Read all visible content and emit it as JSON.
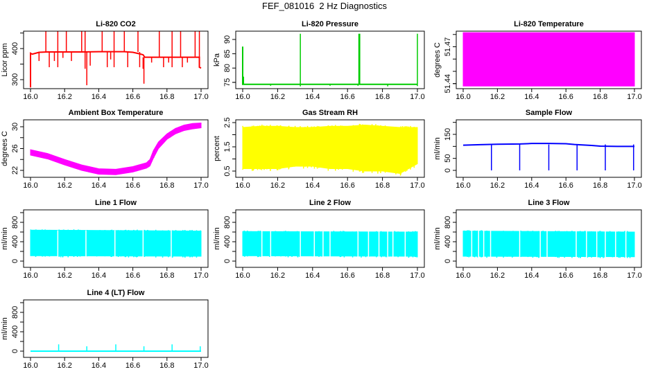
{
  "main_title": "FEF_081016  2 Hz Diagnostics",
  "chart_data": [
    {
      "type": "line",
      "title": "Li-820 CO2",
      "ylabel": "Licor ppm",
      "color": "#ff0000",
      "xlim": [
        16.0,
        17.0
      ],
      "ylim": [
        271,
        456
      ],
      "xticks": [
        16.0,
        16.2,
        16.4,
        16.6,
        16.8,
        17.0
      ],
      "xticklabels": [
        "16.0",
        "16.2",
        "16.4",
        "16.6",
        "16.8",
        "17.0"
      ],
      "yticks": [
        300,
        350,
        400,
        450
      ],
      "yticklabels": [
        "300",
        "",
        "400",
        ""
      ],
      "series": [
        {
          "kind": "line",
          "points": [
            [
              16.0,
              275
            ],
            [
              16.0,
              385
            ],
            [
              16.01,
              382
            ],
            [
              16.03,
              385
            ],
            [
              16.05,
              388
            ],
            [
              16.1,
              389
            ],
            [
              16.2,
              389
            ],
            [
              16.3,
              389
            ],
            [
              16.4,
              390
            ],
            [
              16.5,
              390
            ],
            [
              16.55,
              390
            ],
            [
              16.6,
              388
            ],
            [
              16.64,
              383
            ],
            [
              16.66,
              380
            ],
            [
              16.67,
              372
            ],
            [
              16.8,
              372
            ],
            [
              16.9,
              372
            ],
            [
              16.99,
              372
            ],
            [
              16.99,
              340
            ],
            [
              17.0,
              337
            ]
          ]
        },
        {
          "kind": "spikes",
          "base": 389,
          "x": [
            16.09,
            16.16,
            16.21,
            16.3,
            16.32,
            16.42,
            16.49,
            16.55,
            16.63
          ],
          "y": [
            455,
            455,
            455,
            455,
            455,
            455,
            455,
            455,
            455
          ]
        },
        {
          "kind": "spikes",
          "base": 372,
          "x": [
            16.755,
            16.83,
            16.88,
            16.965,
            16.99
          ],
          "y": [
            455,
            455,
            455,
            455,
            455
          ]
        },
        {
          "kind": "spikes",
          "base": 389,
          "x": [
            16.05,
            16.11,
            16.14,
            16.16,
            16.19,
            16.24,
            16.32,
            16.33,
            16.35,
            16.45,
            16.47,
            16.49,
            16.57,
            16.64
          ],
          "y": [
            360,
            340,
            360,
            340,
            370,
            360,
            335,
            282,
            345,
            340,
            365,
            340,
            340,
            340
          ]
        },
        {
          "kind": "spikes",
          "base": 372,
          "x": [
            16.66,
            16.665,
            16.71,
            16.78,
            16.81,
            16.83,
            16.89,
            16.92
          ],
          "y": [
            335,
            287,
            355,
            340,
            355,
            340,
            340,
            355
          ]
        }
      ]
    },
    {
      "type": "line",
      "title": "Li-820 Pressure",
      "ylabel": "kPa",
      "color": "#00cc00",
      "xlim": [
        16.0,
        17.0
      ],
      "ylim": [
        72.8,
        92.9
      ],
      "xticks": [
        16.0,
        16.2,
        16.4,
        16.6,
        16.8,
        17.0
      ],
      "xticklabels": [
        "16.0",
        "16.2",
        "16.4",
        "16.6",
        "16.8",
        "17.0"
      ],
      "yticks": [
        75,
        80,
        85,
        90
      ],
      "yticklabels": [
        "75",
        "80",
        "85",
        "90"
      ],
      "series": [
        {
          "kind": "line",
          "points": [
            [
              16.0,
              87.5
            ],
            [
              16.0,
              74.3
            ],
            [
              17.0,
              74.3
            ]
          ]
        },
        {
          "kind": "spikes",
          "base": 74.3,
          "x": [
            16.33,
            16.665,
            16.67,
            17.0
          ],
          "y": [
            92,
            92,
            92,
            92
          ]
        },
        {
          "kind": "spikes",
          "base": 74.3,
          "x": [
            16.005,
            16.16,
            16.33,
            16.5,
            16.66,
            16.83,
            17.0
          ],
          "y": [
            77,
            73.8,
            73.6,
            73.8,
            73.8,
            73.6,
            73.7
          ]
        }
      ]
    },
    {
      "type": "area",
      "title": "Li-820 Temperature",
      "ylabel": "degrees C",
      "color": "#ff00ff",
      "xlim": [
        16.0,
        17.0
      ],
      "ylim": [
        51.4359,
        51.4827
      ],
      "xticks": [
        16.0,
        16.2,
        16.4,
        16.6,
        16.8,
        17.0
      ],
      "xticklabels": [
        "16.0",
        "16.2",
        "16.4",
        "16.6",
        "16.8",
        "17.0"
      ],
      "yticks": [
        51.44,
        51.45,
        51.46,
        51.47,
        51.48
      ],
      "yticklabels": [
        "51.44",
        "",
        "",
        "51.47",
        ""
      ],
      "series": [
        {
          "kind": "band",
          "x": [
            16.0,
            17.0
          ],
          "low": [
            51.438,
            51.438
          ],
          "high": [
            51.4815,
            51.4815
          ]
        }
      ]
    },
    {
      "type": "area",
      "title": "Ambient Box Temperature",
      "ylabel": "degrees C",
      "color": "#ff00ff",
      "xlim": [
        16.0,
        17.0
      ],
      "ylim": [
        20.73,
        31.27
      ],
      "xticks": [
        16.0,
        16.2,
        16.4,
        16.6,
        16.8,
        17.0
      ],
      "xticklabels": [
        "16.0",
        "16.2",
        "16.4",
        "16.6",
        "16.8",
        "17.0"
      ],
      "yticks": [
        22,
        24,
        26,
        28,
        30
      ],
      "yticklabels": [
        "22",
        "",
        "26",
        "",
        "30"
      ],
      "series": [
        {
          "kind": "band",
          "x": [
            16.0,
            16.1,
            16.2,
            16.3,
            16.4,
            16.5,
            16.6,
            16.68,
            16.7,
            16.72,
            16.75,
            16.8,
            16.85,
            16.9,
            16.95,
            17.0
          ],
          "low": [
            24.8,
            24.1,
            23.0,
            22.0,
            21.3,
            21.2,
            21.7,
            22.4,
            22.8,
            24.2,
            26.0,
            27.7,
            28.7,
            29.3,
            29.6,
            29.8
          ],
          "high": [
            25.8,
            25.1,
            24.0,
            23.0,
            22.3,
            22.2,
            22.7,
            23.4,
            24.0,
            25.6,
            27.2,
            28.7,
            29.7,
            30.3,
            30.6,
            30.7
          ]
        }
      ]
    },
    {
      "type": "area",
      "title": "Gas Stream RH",
      "ylabel": "percent",
      "color": "#ffff00",
      "xlim": [
        16.0,
        17.0
      ],
      "ylim": [
        0.243,
        2.614
      ],
      "xticks": [
        16.0,
        16.2,
        16.4,
        16.6,
        16.8,
        17.0
      ],
      "xticklabels": [
        "16.0",
        "16.2",
        "16.4",
        "16.6",
        "16.8",
        "17.0"
      ],
      "yticks": [
        0.5,
        1.0,
        1.5,
        2.0,
        2.5
      ],
      "yticklabels": [
        "0.5",
        "",
        "1.5",
        "",
        "2.5"
      ],
      "series": [
        {
          "kind": "band",
          "x": [
            16.0,
            16.1,
            16.2,
            16.3,
            16.4,
            16.5,
            16.6,
            16.7,
            16.8,
            16.9,
            17.0
          ],
          "low": [
            0.6,
            0.6,
            0.6,
            0.7,
            0.7,
            0.6,
            0.6,
            0.5,
            0.5,
            0.4,
            0.8
          ],
          "high": [
            2.3,
            2.35,
            2.35,
            2.3,
            2.3,
            2.35,
            2.35,
            2.4,
            2.35,
            2.3,
            2.3
          ]
        }
      ]
    },
    {
      "type": "line",
      "title": "Sample Flow",
      "ylabel": "ml/min",
      "color": "#0000ff",
      "xlim": [
        16.0,
        17.0
      ],
      "ylim": [
        -28.8,
        210.6
      ],
      "xticks": [
        16.0,
        16.2,
        16.4,
        16.6,
        16.8,
        17.0
      ],
      "xticklabels": [
        "16.0",
        "16.2",
        "16.4",
        "16.6",
        "16.8",
        "17.0"
      ],
      "yticks": [
        0,
        50,
        100,
        150,
        200
      ],
      "yticklabels": [
        "0",
        "50",
        "",
        "150",
        ""
      ],
      "series": [
        {
          "kind": "line",
          "points": [
            [
              16.0,
              105
            ],
            [
              16.1,
              107
            ],
            [
              16.2,
              109
            ],
            [
              16.33,
              110
            ],
            [
              16.4,
              112
            ],
            [
              16.5,
              112
            ],
            [
              16.6,
              111
            ],
            [
              16.65,
              108
            ],
            [
              16.75,
              104
            ],
            [
              16.8,
              101
            ],
            [
              16.9,
              100
            ],
            [
              17.0,
              100
            ]
          ]
        },
        {
          "kind": "spikes",
          "base": 108,
          "x": [
            16.165,
            16.33,
            16.5,
            16.665,
            16.83,
            16.995
          ],
          "y": [
            0,
            0,
            0,
            0,
            0,
            0
          ]
        }
      ]
    },
    {
      "type": "area",
      "title": "Line 1 Flow",
      "ylabel": "ml/min",
      "color": "#00ffff",
      "xlim": [
        16.0,
        17.0
      ],
      "ylim": [
        -128.6,
        1057
      ],
      "xticks": [
        16.0,
        16.2,
        16.4,
        16.6,
        16.8,
        17.0
      ],
      "xticklabels": [
        "16.0",
        "16.2",
        "16.4",
        "16.6",
        "16.8",
        "17.0"
      ],
      "yticks": [
        0,
        200,
        400,
        600,
        800,
        1000
      ],
      "yticklabels": [
        "0",
        "",
        "400",
        "",
        "800",
        ""
      ],
      "series": [
        {
          "kind": "band",
          "x": [
            16.0,
            17.0
          ],
          "low": [
            110,
            100
          ],
          "high": [
            640,
            620
          ]
        },
        {
          "kind": "gaps",
          "x": [
            16.16,
            16.325,
            16.495,
            16.66,
            16.825
          ]
        }
      ]
    },
    {
      "type": "area",
      "title": "Line 2 Flow",
      "ylabel": "ml/min",
      "color": "#00ffff",
      "xlim": [
        16.0,
        17.0
      ],
      "ylim": [
        -128.6,
        1057
      ],
      "xticks": [
        16.0,
        16.2,
        16.4,
        16.6,
        16.8,
        17.0
      ],
      "xticklabels": [
        "16.0",
        "16.2",
        "16.4",
        "16.6",
        "16.8",
        "17.0"
      ],
      "yticks": [
        0,
        200,
        400,
        600,
        800,
        1000
      ],
      "yticklabels": [
        "0",
        "",
        "400",
        "",
        "800",
        ""
      ],
      "series": [
        {
          "kind": "band",
          "x": [
            16.0,
            17.0
          ],
          "low": [
            110,
            100
          ],
          "high": [
            610,
            600
          ]
        },
        {
          "kind": "gaps",
          "x": [
            16.11,
            16.16,
            16.33,
            16.41,
            16.46,
            16.5,
            16.66,
            16.72,
            16.78,
            16.83,
            16.86,
            16.93
          ]
        }
      ]
    },
    {
      "type": "area",
      "title": "Line 3 Flow",
      "ylabel": "ml/min",
      "color": "#00ffff",
      "xlim": [
        16.0,
        17.0
      ],
      "ylim": [
        -128.6,
        1057
      ],
      "xticks": [
        16.0,
        16.2,
        16.4,
        16.6,
        16.8,
        17.0
      ],
      "xticklabels": [
        "16.0",
        "16.2",
        "16.4",
        "16.6",
        "16.8",
        "17.0"
      ],
      "yticks": [
        0,
        200,
        400,
        600,
        800,
        1000
      ],
      "yticklabels": [
        "0",
        "",
        "400",
        "",
        "800",
        ""
      ],
      "series": [
        {
          "kind": "band",
          "x": [
            16.0,
            17.0
          ],
          "low": [
            100,
            90
          ],
          "high": [
            620,
            600
          ]
        },
        {
          "kind": "gaps",
          "x": [
            16.05,
            16.09,
            16.12,
            16.16,
            16.33,
            16.45,
            16.49,
            16.66,
            16.72,
            16.78,
            16.83,
            16.89,
            16.95
          ]
        }
      ]
    },
    {
      "type": "line",
      "title": "Line 4 (LT) Flow",
      "ylabel": "ml/min",
      "color": "#00ffff",
      "xlim": [
        16.0,
        17.0
      ],
      "ylim": [
        -128.6,
        1057
      ],
      "xticks": [
        16.0,
        16.2,
        16.4,
        16.6,
        16.8,
        17.0
      ],
      "xticklabels": [
        "16.0",
        "16.2",
        "16.4",
        "16.6",
        "16.8",
        "17.0"
      ],
      "yticks": [
        0,
        200,
        400,
        600,
        800,
        1000
      ],
      "yticklabels": [
        "0",
        "",
        "400",
        "",
        "800",
        ""
      ],
      "series": [
        {
          "kind": "line",
          "points": [
            [
              16.0,
              0
            ],
            [
              17.0,
              0
            ]
          ]
        },
        {
          "kind": "spikes",
          "base": 0,
          "x": [
            16.165,
            16.33,
            16.5,
            16.665,
            16.83,
            16.995
          ],
          "y": [
            140,
            100,
            140,
            100,
            140,
            100
          ]
        }
      ]
    }
  ]
}
